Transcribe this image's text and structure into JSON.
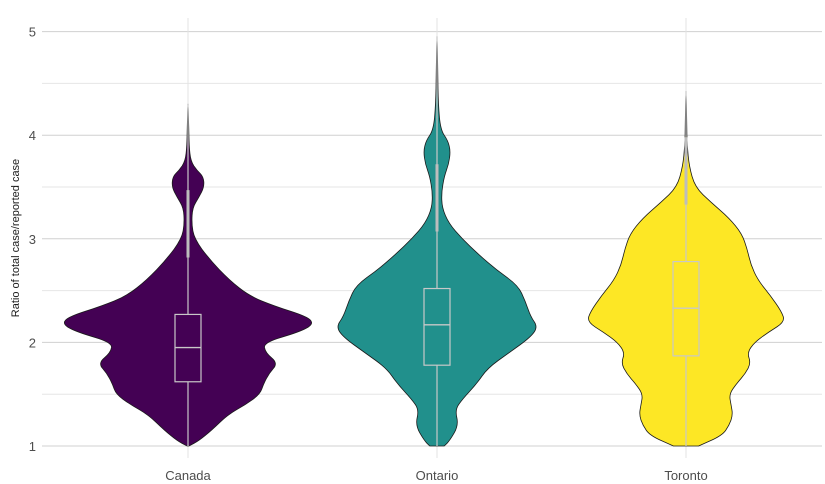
{
  "chart_data": {
    "type": "violin",
    "title": "",
    "xlabel": "",
    "ylabel": "Ratio of total case/reported case",
    "ylim": [
      1,
      5.2
    ],
    "y_ticks": [
      1,
      2,
      3,
      4,
      5
    ],
    "grid": true,
    "legend": "none",
    "categories": [
      "Canada",
      "Ontario",
      "Toronto"
    ],
    "series": [
      {
        "category": "Canada",
        "color": "#440154",
        "whisker_low": 1.0,
        "q1": 1.62,
        "median": 1.95,
        "q3": 2.27,
        "whisker_high": 4.3,
        "density_profile": [
          [
            1.0,
            0.005
          ],
          [
            1.05,
            0.06
          ],
          [
            1.15,
            0.13
          ],
          [
            1.3,
            0.22
          ],
          [
            1.4,
            0.32
          ],
          [
            1.5,
            0.4
          ],
          [
            1.6,
            0.42
          ],
          [
            1.7,
            0.45
          ],
          [
            1.8,
            0.5
          ],
          [
            1.9,
            0.43
          ],
          [
            2.0,
            0.42
          ],
          [
            2.1,
            0.62
          ],
          [
            2.18,
            0.7
          ],
          [
            2.25,
            0.66
          ],
          [
            2.35,
            0.48
          ],
          [
            2.45,
            0.34
          ],
          [
            2.6,
            0.23
          ],
          [
            2.8,
            0.12
          ],
          [
            3.0,
            0.035
          ],
          [
            3.15,
            0.02
          ],
          [
            3.3,
            0.025
          ],
          [
            3.4,
            0.06
          ],
          [
            3.5,
            0.09
          ],
          [
            3.6,
            0.085
          ],
          [
            3.66,
            0.05
          ],
          [
            3.75,
            0.015
          ],
          [
            3.9,
            0.006
          ],
          [
            4.1,
            0.004
          ],
          [
            4.3,
            0.001
          ]
        ]
      },
      {
        "category": "Ontario",
        "color": "#21908c",
        "whisker_low": 1.0,
        "q1": 1.78,
        "median": 2.17,
        "q3": 2.52,
        "whisker_high": 4.95,
        "density_profile": [
          [
            1.0,
            0.04
          ],
          [
            1.05,
            0.07
          ],
          [
            1.2,
            0.12
          ],
          [
            1.35,
            0.1
          ],
          [
            1.45,
            0.14
          ],
          [
            1.6,
            0.22
          ],
          [
            1.75,
            0.28
          ],
          [
            1.9,
            0.4
          ],
          [
            2.05,
            0.52
          ],
          [
            2.15,
            0.56
          ],
          [
            2.25,
            0.52
          ],
          [
            2.4,
            0.49
          ],
          [
            2.55,
            0.45
          ],
          [
            2.7,
            0.33
          ],
          [
            2.85,
            0.23
          ],
          [
            3.0,
            0.14
          ],
          [
            3.15,
            0.065
          ],
          [
            3.3,
            0.028
          ],
          [
            3.45,
            0.025
          ],
          [
            3.6,
            0.04
          ],
          [
            3.72,
            0.065
          ],
          [
            3.85,
            0.075
          ],
          [
            3.95,
            0.06
          ],
          [
            4.05,
            0.02
          ],
          [
            4.3,
            0.007
          ],
          [
            4.6,
            0.004
          ],
          [
            4.95,
            0.001
          ]
        ]
      },
      {
        "category": "Toronto",
        "color": "#fde725",
        "whisker_low": 1.0,
        "q1": 1.87,
        "median": 2.33,
        "q3": 2.78,
        "whisker_high": 4.42,
        "density_profile": [
          [
            1.0,
            0.07
          ],
          [
            1.1,
            0.2
          ],
          [
            1.2,
            0.24
          ],
          [
            1.3,
            0.26
          ],
          [
            1.4,
            0.25
          ],
          [
            1.5,
            0.24
          ],
          [
            1.6,
            0.28
          ],
          [
            1.7,
            0.33
          ],
          [
            1.8,
            0.36
          ],
          [
            1.9,
            0.34
          ],
          [
            2.0,
            0.38
          ],
          [
            2.1,
            0.46
          ],
          [
            2.2,
            0.55
          ],
          [
            2.3,
            0.53
          ],
          [
            2.45,
            0.47
          ],
          [
            2.6,
            0.4
          ],
          [
            2.75,
            0.36
          ],
          [
            2.9,
            0.34
          ],
          [
            3.05,
            0.31
          ],
          [
            3.2,
            0.24
          ],
          [
            3.35,
            0.14
          ],
          [
            3.5,
            0.05
          ],
          [
            3.7,
            0.018
          ],
          [
            3.9,
            0.006
          ],
          [
            4.1,
            0.004
          ],
          [
            4.42,
            0.001
          ]
        ]
      }
    ]
  }
}
